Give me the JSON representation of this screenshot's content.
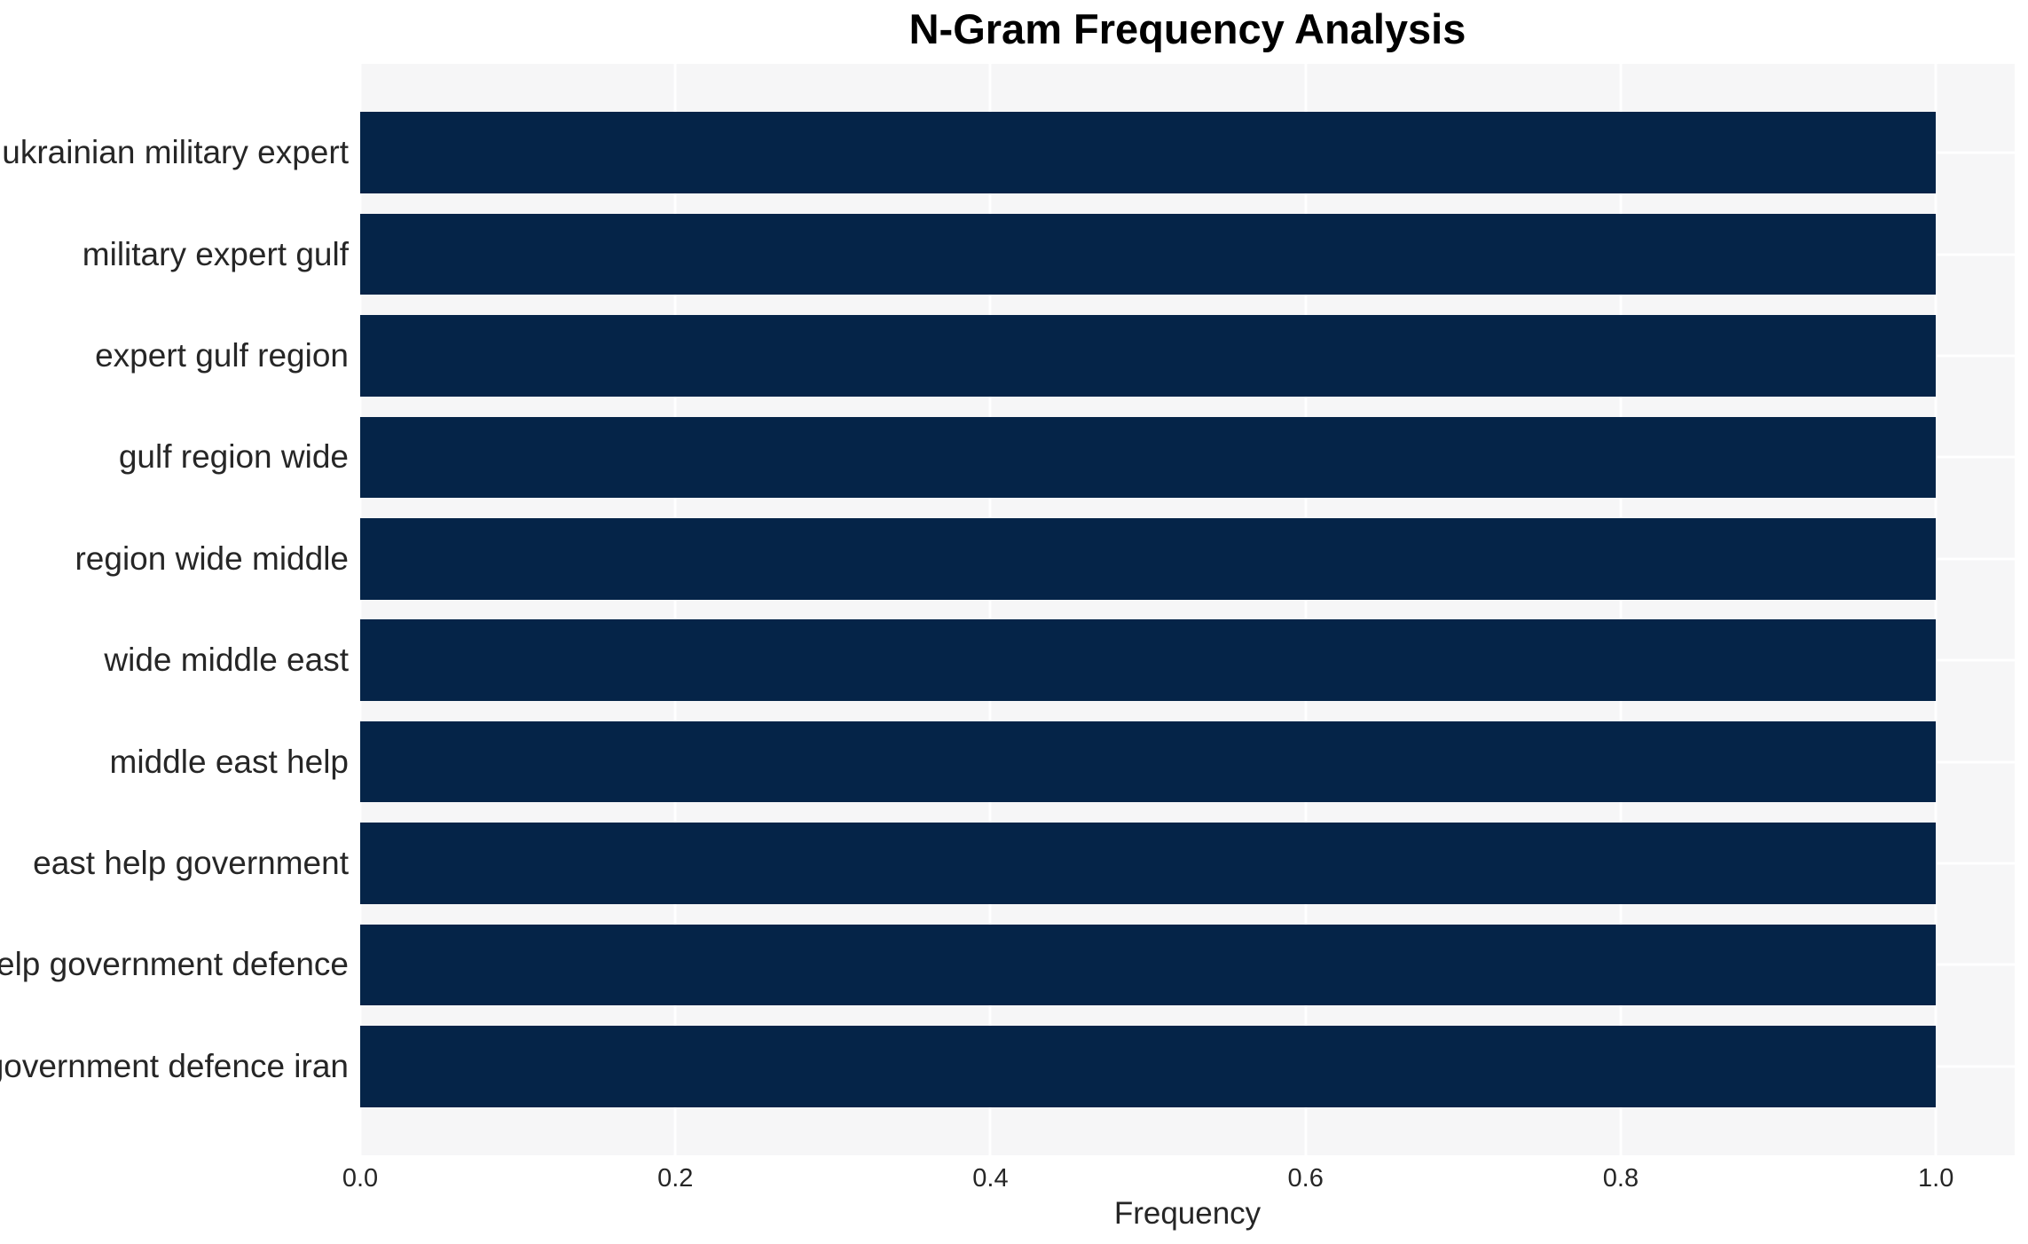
{
  "chart_data": {
    "type": "bar",
    "orientation": "horizontal",
    "title": "N-Gram Frequency Analysis",
    "xlabel": "Frequency",
    "ylabel": "",
    "categories": [
      "ukrainian military expert",
      "military expert gulf",
      "expert gulf region",
      "gulf region wide",
      "region wide middle",
      "wide middle east",
      "middle east help",
      "east help government",
      "help government defence",
      "government defence iran"
    ],
    "values": [
      1.0,
      1.0,
      1.0,
      1.0,
      1.0,
      1.0,
      1.0,
      1.0,
      1.0,
      1.0
    ],
    "xlim": [
      0,
      1.05
    ],
    "xticks": [
      0.0,
      0.2,
      0.4,
      0.6,
      0.8,
      1.0
    ],
    "xtick_labels": [
      "0.0",
      "0.2",
      "0.4",
      "0.6",
      "0.8",
      "1.0"
    ],
    "grid": true,
    "legend": false,
    "colors": {
      "bar": "#052448",
      "plot_background": "#f6f6f7",
      "figure_background": "#ffffff",
      "gridline": "#ffffff",
      "tick_text": "#262626",
      "title_text": "#000000"
    }
  }
}
